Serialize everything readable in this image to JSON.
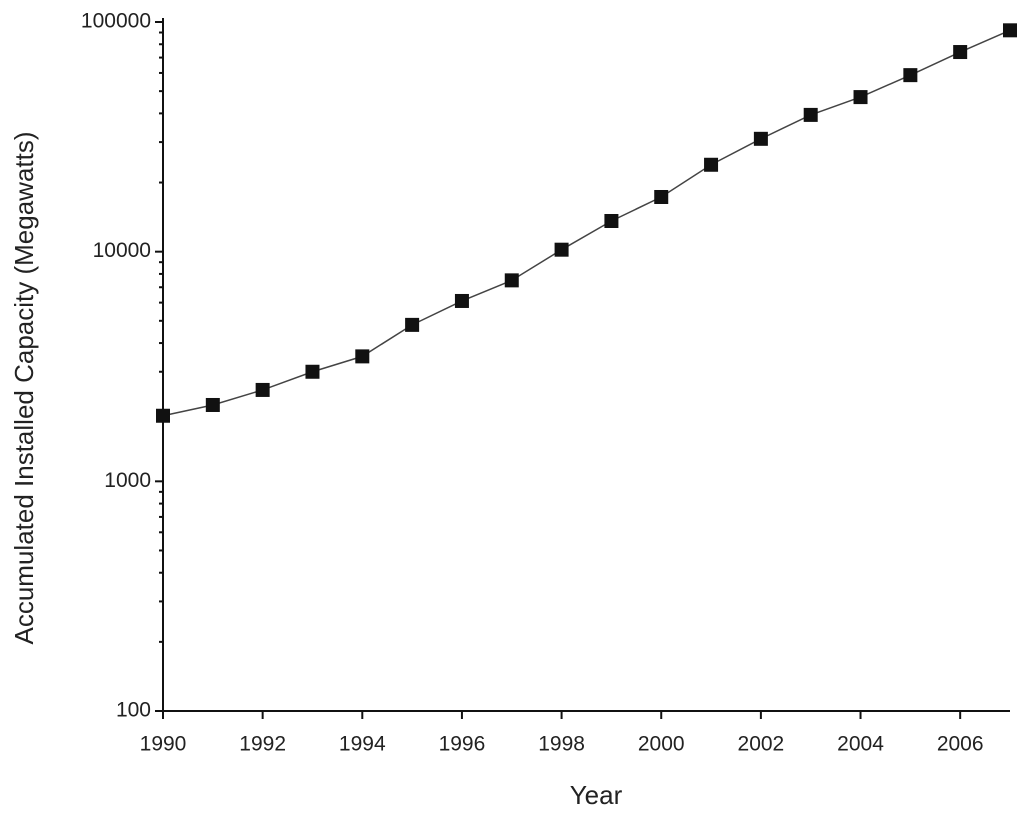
{
  "chart_data": {
    "type": "line",
    "x_label": "Year",
    "y_label": "Accumulated Installed Capacity (Megawatts)",
    "x": [
      1990,
      1991,
      1992,
      1993,
      1994,
      1995,
      1996,
      1997,
      1998,
      1999,
      2000,
      2001,
      2002,
      2003,
      2004,
      2005,
      2006,
      2007
    ],
    "series": [
      {
        "color": "#111111",
        "values": [
          1930,
          2150,
          2500,
          3000,
          3500,
          4800,
          6100,
          7500,
          10200,
          13600,
          17300,
          23900,
          31000,
          39400,
          47100,
          58700,
          74000,
          92000
        ]
      }
    ],
    "xlim": [
      1990,
      2007
    ],
    "xticks": [
      1990,
      1992,
      1994,
      1996,
      1998,
      2000,
      2002,
      2004,
      2006
    ],
    "ylim": [
      100,
      100000
    ],
    "yticks": [
      100,
      1000,
      10000,
      100000
    ],
    "yscale": "log",
    "grid": false
  }
}
